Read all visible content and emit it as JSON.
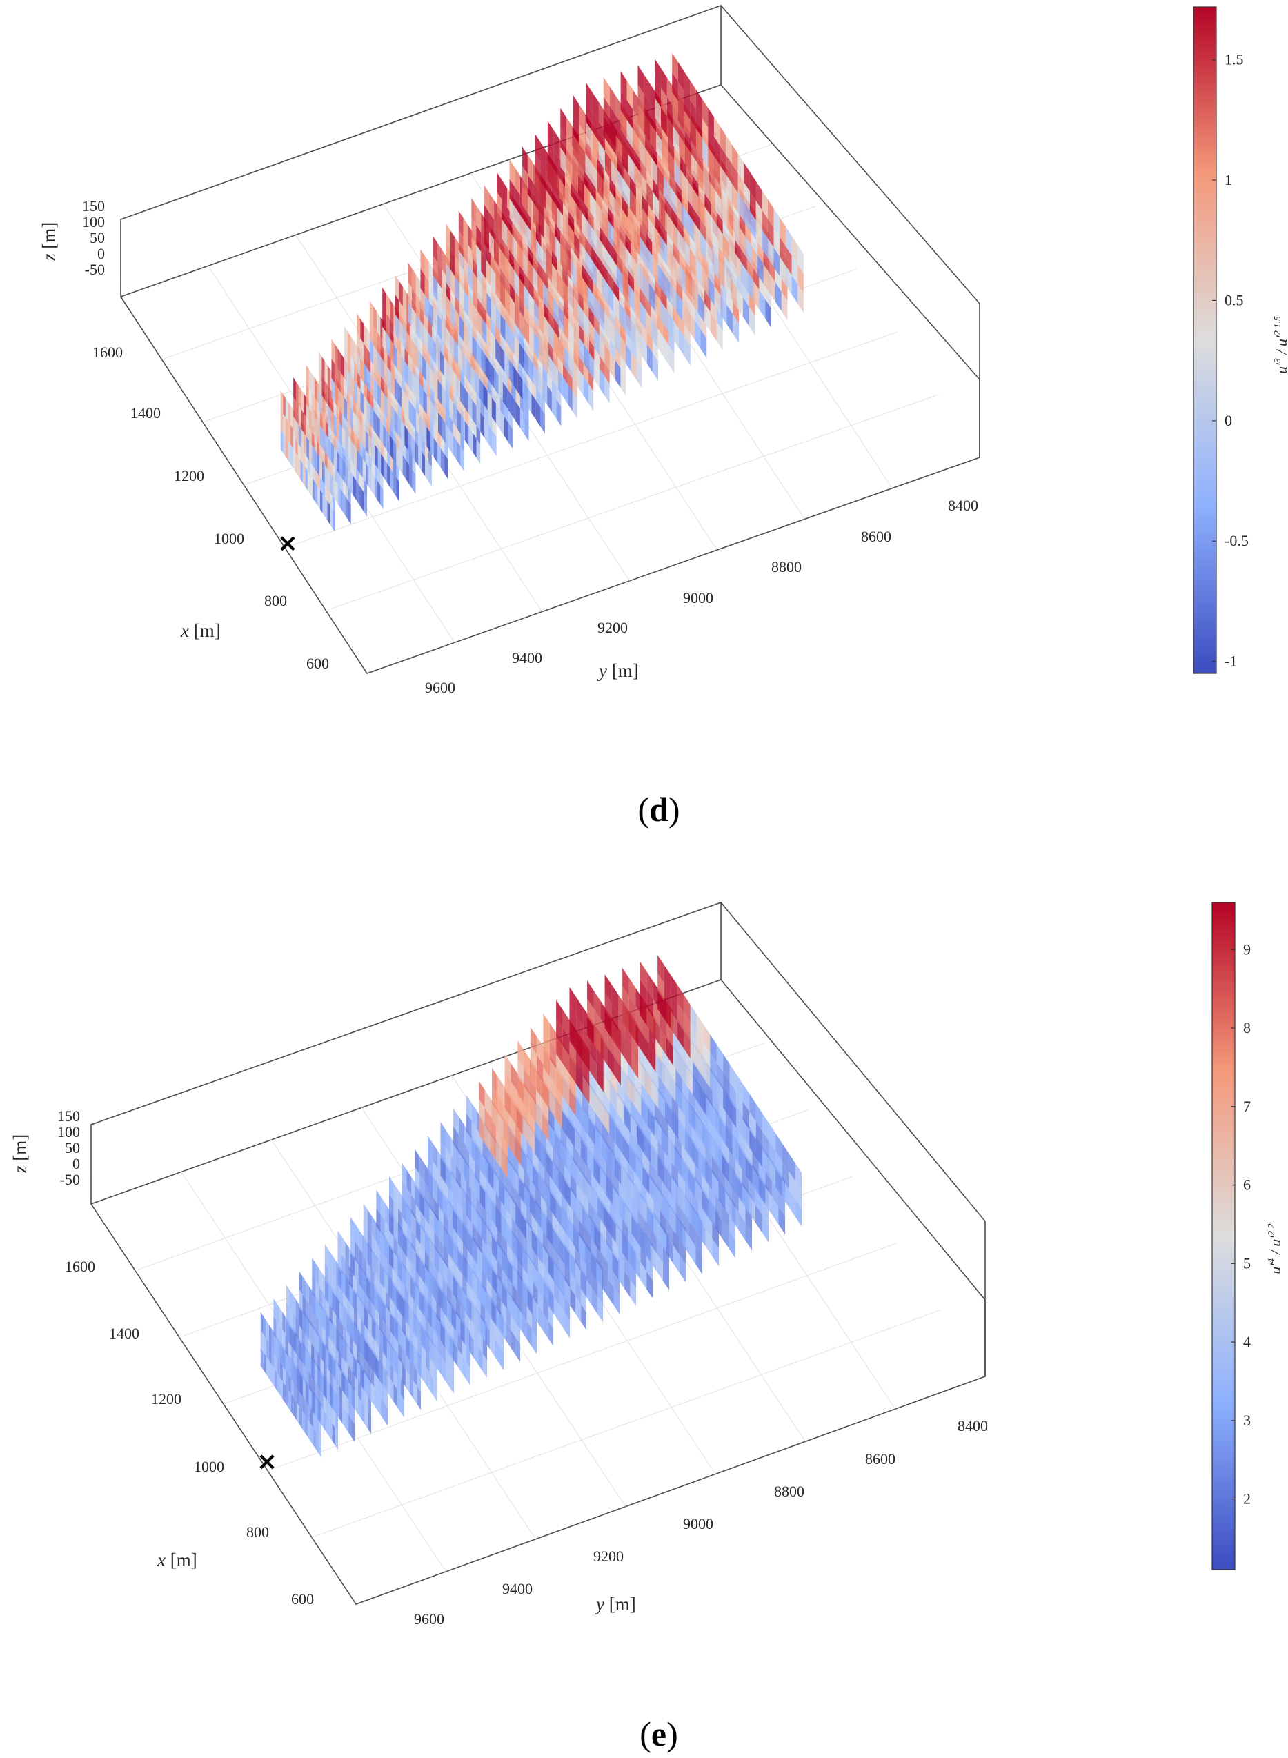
{
  "chart_data": [
    {
      "panel": "d",
      "type": "3d-slice-scatter",
      "caption_paren_open": "(",
      "caption_letter": "d",
      "caption_paren_close": ")",
      "xlabel": "x",
      "ylabel": "y",
      "zlabel": "z",
      "unit": "[m]",
      "x_ticks": [
        "1600",
        "1400",
        "1200",
        "1000",
        "800",
        "600"
      ],
      "y_ticks": [
        "9600",
        "9400",
        "9200",
        "9000",
        "8800",
        "8600",
        "8400"
      ],
      "z_ticks": [
        "150",
        "100",
        "50",
        "0",
        "-50"
      ],
      "xlim": [
        520,
        1740
      ],
      "ylim": [
        8320,
        9700
      ],
      "zlim": [
        -80,
        150
      ],
      "marker": {
        "symbol": "×",
        "x": 1000,
        "y": 9640
      },
      "colorbar": {
        "label": "u'^3 / u'^2^1.5",
        "ticks": [
          "1.5",
          "1",
          "0.5",
          "0",
          "-0.5",
          "-1"
        ],
        "tick_values": [
          1.5,
          1,
          0.5,
          0,
          -0.5,
          -1
        ],
        "range": [
          -1.05,
          1.72
        ],
        "colormap": [
          "#3b4cc0",
          "#8db0fe",
          "#dddddd",
          "#f4987a",
          "#b40426"
        ]
      },
      "pattern": "skewness: negative (blue) in lower rows near x 900-1300, positive (red) upper rows, strongest near y 8400-8800"
    },
    {
      "panel": "e",
      "type": "3d-slice-scatter",
      "caption_paren_open": "(",
      "caption_letter": "e",
      "caption_paren_close": ")",
      "xlabel": "x",
      "ylabel": "y",
      "zlabel": "z",
      "unit": "[m]",
      "x_ticks": [
        "1600",
        "1400",
        "1200",
        "1000",
        "800",
        "600"
      ],
      "y_ticks": [
        "9600",
        "9400",
        "9200",
        "9000",
        "8800",
        "8600",
        "8400"
      ],
      "z_ticks": [
        "150",
        "100",
        "50",
        "0",
        "-50"
      ],
      "xlim": [
        520,
        1740
      ],
      "ylim": [
        8320,
        9700
      ],
      "zlim": [
        -80,
        150
      ],
      "marker": {
        "symbol": "×",
        "x": 1000,
        "y": 9640
      },
      "colorbar": {
        "label": "u'^4 / u'^2^2",
        "ticks": [
          "9",
          "8",
          "7",
          "6",
          "5",
          "4",
          "3",
          "2"
        ],
        "tick_values": [
          9,
          8,
          7,
          6,
          5,
          4,
          3,
          2
        ],
        "range": [
          1.1,
          9.6
        ],
        "colormap": [
          "#3b4cc0",
          "#8db0fe",
          "#dddddd",
          "#f4987a",
          "#b40426"
        ]
      },
      "pattern": "kurtosis: mostly 2.5-4 (blue); high values (7-9, red) near y 8400-8800 and the top slices"
    }
  ]
}
